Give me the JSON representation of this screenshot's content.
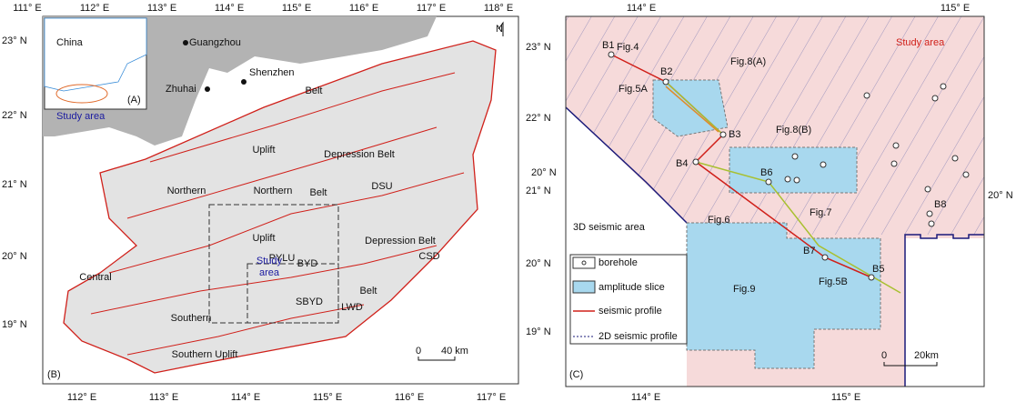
{
  "panel_b": {
    "label": "(B)",
    "lon_top": [
      "111° E",
      "112° E",
      "113° E",
      "114° E",
      "115° E",
      "116° E",
      "117° E",
      "118° E"
    ],
    "lon_bottom": [
      "112° E",
      "113° E",
      "114° E",
      "115° E",
      "116° E",
      "117° E"
    ],
    "lat_left": [
      "23° N",
      "22° N",
      "21° N",
      "20° N",
      "19° N"
    ],
    "lat_right": [
      "23° N",
      "22° N",
      "21° N",
      "20° N",
      "19° N"
    ],
    "inset": {
      "country": "China",
      "label": "(A)",
      "study_area": "Study area"
    },
    "cities": [
      "Guangzhou",
      "Shenzhen",
      "Zhuhai"
    ],
    "north": "N",
    "units": [
      "Belt",
      "Uplift",
      "Northern",
      "Northern",
      "Depression Belt",
      "Belt",
      "DSU",
      "Depression Belt",
      "CSD",
      "Uplift",
      "PYLU",
      "Study",
      "area",
      "BYD",
      "Central",
      "Belt",
      "SBYD",
      "LWD",
      "Southern",
      "Southern Uplift"
    ],
    "scale": [
      "0",
      "40 km"
    ]
  },
  "panel_c": {
    "label": "(C)",
    "lon_top": [
      "114° E",
      "115° E"
    ],
    "lon_bottom": [
      "114° E",
      "115° E"
    ],
    "lat_left": [
      "20° N"
    ],
    "lat_right": [
      "20° N"
    ],
    "study_area": "Study area",
    "seismic_area": "3D seismic area",
    "boreholes": [
      "B1",
      "B2",
      "B3",
      "B4",
      "B5",
      "B6",
      "B7",
      "B8"
    ],
    "figures": [
      "Fig.4",
      "Fig.5A",
      "Fig.8(A)",
      "Fig.8(B)",
      "Fig.6",
      "Fig.7",
      "Fig.5B",
      "Fig.9"
    ],
    "legend": [
      "borehole",
      "amplitude slice",
      "seismic profile",
      "2D seismic profile"
    ],
    "scale": [
      "0",
      "20km"
    ]
  }
}
